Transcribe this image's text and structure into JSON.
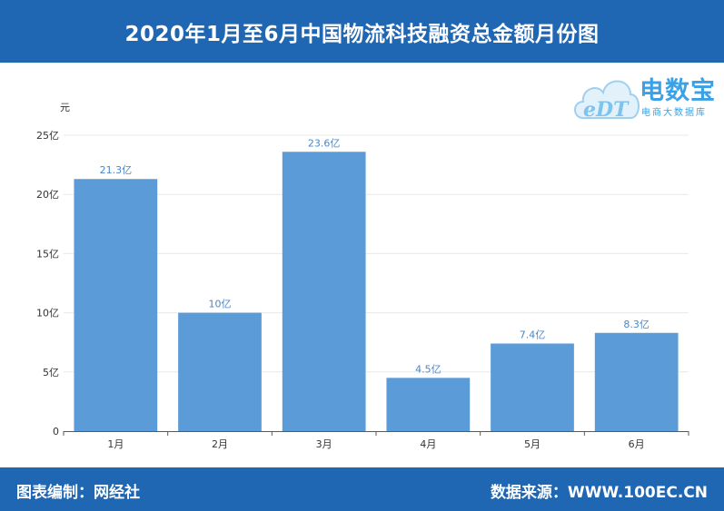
{
  "header": {
    "title": "2020年1月至6月中国物流科技融资总金额月份图"
  },
  "logo": {
    "name": "电数宝",
    "sub": "电商大数据库",
    "mark": "eDT"
  },
  "footer": {
    "left": "图表编制：网经社",
    "right": "数据来源：WWW.100EC.CN"
  },
  "colors": {
    "header_bg": "#1f66b3",
    "bar": "#5b9bd8",
    "data_label": "#4c86c6"
  },
  "chart_data": {
    "type": "bar",
    "title": "",
    "ylabel": "元",
    "xlabel": "",
    "categories": [
      "1月",
      "2月",
      "3月",
      "4月",
      "5月",
      "6月"
    ],
    "values": [
      21.3,
      10,
      23.6,
      4.5,
      7.4,
      8.3
    ],
    "data_labels": [
      "21.3亿",
      "10亿",
      "23.6亿",
      "4.5亿",
      "7.4亿",
      "8.3亿"
    ],
    "yticks": [
      0,
      5,
      10,
      15,
      20,
      25
    ],
    "ytick_labels": [
      "0",
      "5亿",
      "10亿",
      "15亿",
      "20亿",
      "25亿"
    ],
    "ylim": [
      0,
      25
    ],
    "grid": true,
    "legend": "none"
  }
}
